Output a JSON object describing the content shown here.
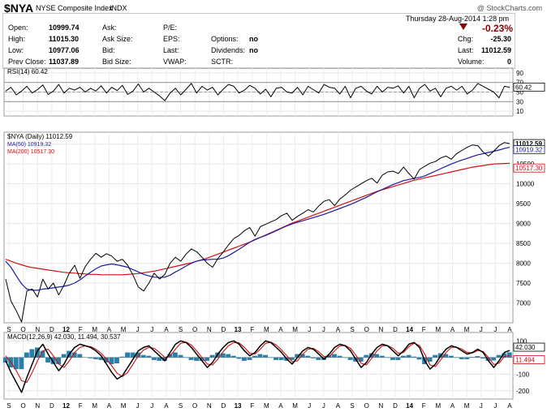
{
  "header": {
    "symbol": "$NYA",
    "name": "NYSE Composite Index",
    "exchange": "INDX",
    "watermark": "@ StockCharts.com"
  },
  "quote": {
    "date_line": "Thursday   28-Aug-2014   1:28 pm",
    "pct_change": "-0.23%",
    "rows": [
      {
        "l1": "Open:",
        "v1": "10999.74",
        "l2": "Ask:",
        "v2": "",
        "l3": "P/E:",
        "v3": "",
        "l4": "",
        "v4": ""
      },
      {
        "l1": "High:",
        "v1": "11015.30",
        "l2": "Ask Size:",
        "v2": "",
        "l3": "EPS:",
        "v3": "",
        "l4": "Options:",
        "v4": "no"
      },
      {
        "l1": "Low:",
        "v1": "10977.06",
        "l2": "Bid:",
        "v2": "",
        "l3": "Last:",
        "v3": "",
        "l4": "Dividends:",
        "v4": "no"
      },
      {
        "l1": "Prev Close:",
        "v1": "11037.89",
        "l2": "Bid Size:",
        "v2": "",
        "l3": "VWAP:",
        "v3": "",
        "l4": "SCTR:",
        "v4": ""
      }
    ],
    "right": [
      {
        "label": "Chg:",
        "value": "-25.30"
      },
      {
        "label": "Last:",
        "value": "11012.59"
      },
      {
        "label": "Volume:",
        "value": "0"
      }
    ]
  },
  "chart_data": [
    {
      "type": "line",
      "title": "RSI(14) 60.42",
      "ylim": [
        0,
        100
      ],
      "y_ticks": [
        10,
        30,
        50,
        70,
        90
      ],
      "reference_lines": [
        30,
        50,
        70
      ],
      "last_label": "60.42",
      "series": [
        {
          "name": "RSI(14)",
          "color": "#000000",
          "values": [
            52,
            60,
            44,
            52,
            62,
            48,
            55,
            65,
            45,
            52,
            66,
            48,
            58,
            54,
            60,
            50,
            58,
            52,
            63,
            48,
            60,
            53,
            64,
            45,
            52,
            67,
            50,
            58,
            50,
            42,
            32,
            48,
            58,
            44,
            56,
            68,
            48,
            62,
            54,
            60,
            44,
            56,
            66,
            62,
            48,
            54,
            64,
            58,
            46,
            56,
            40,
            58,
            60,
            50,
            48,
            60,
            44,
            62,
            55,
            48,
            66,
            60,
            58,
            46,
            62,
            38,
            58,
            62,
            52,
            46,
            62,
            50,
            60,
            58,
            63,
            48,
            62,
            38,
            58,
            66,
            52,
            58,
            40,
            58,
            62,
            54,
            62,
            46,
            54,
            68,
            62,
            56,
            50,
            38,
            62,
            60
          ]
        }
      ]
    },
    {
      "type": "line",
      "title": "$NYA (Daily) 11012.59",
      "ylim": [
        6500,
        11300
      ],
      "y_ticks": [
        7000,
        7500,
        8000,
        8500,
        9000,
        9500,
        10000,
        10500,
        11000
      ],
      "x_tick_labels": [
        "S",
        "O",
        "N",
        "D",
        "12",
        "F",
        "M",
        "A",
        "M",
        "J",
        "J",
        "A",
        "S",
        "O",
        "N",
        "D",
        "13",
        "F",
        "M",
        "A",
        "M",
        "J",
        "J",
        "A",
        "S",
        "O",
        "N",
        "D",
        "14",
        "F",
        "M",
        "A",
        "M",
        "J",
        "J",
        "A"
      ],
      "last_labels": {
        "price": "11012.59",
        "ma50": "10919.32",
        "ma200": "10517.30"
      },
      "series": [
        {
          "name": "$NYA (Daily) 11012.59",
          "color": "#000000",
          "values": [
            7600,
            7050,
            6800,
            6520,
            7300,
            7350,
            7150,
            7600,
            7350,
            7500,
            7200,
            7450,
            7750,
            7950,
            7620,
            7920,
            8100,
            8250,
            8150,
            8240,
            8180,
            8050,
            8100,
            7950,
            7700,
            7400,
            7300,
            7500,
            7750,
            7600,
            7720,
            8000,
            8150,
            8050,
            8230,
            8360,
            8290,
            8150,
            8000,
            7900,
            8120,
            8280,
            8460,
            8620,
            8700,
            8820,
            8900,
            8680,
            8920,
            8980,
            9040,
            9100,
            9200,
            9260,
            9080,
            9180,
            9260,
            9350,
            9290,
            9440,
            9560,
            9600,
            9450,
            9620,
            9720,
            9840,
            9920,
            10000,
            10080,
            10140,
            10020,
            10220,
            10300,
            10320,
            10260,
            10420,
            10260,
            10120,
            10360,
            10440,
            10520,
            10560,
            10650,
            10700,
            10620,
            10760,
            10840,
            10920,
            10980,
            10960,
            10800,
            10700,
            10820,
            10960,
            11037.89,
            11012.59
          ]
        },
        {
          "name": "MA(50) 10919.32",
          "color": "#1a1aa0",
          "values": [
            8050,
            7900,
            7680,
            7480,
            7350,
            7320,
            7320,
            7350,
            7360,
            7380,
            7400,
            7420,
            7450,
            7500,
            7580,
            7680,
            7770,
            7860,
            7930,
            7960,
            7980,
            7960,
            7930,
            7900,
            7840,
            7780,
            7720,
            7680,
            7650,
            7640,
            7650,
            7700,
            7780,
            7850,
            7930,
            8000,
            8050,
            8080,
            8090,
            8100,
            8100,
            8130,
            8190,
            8270,
            8350,
            8440,
            8530,
            8600,
            8650,
            8700,
            8760,
            8820,
            8880,
            8940,
            8990,
            9030,
            9070,
            9110,
            9150,
            9190,
            9230,
            9280,
            9330,
            9380,
            9430,
            9480,
            9540,
            9600,
            9660,
            9730,
            9800,
            9860,
            9920,
            9980,
            10030,
            10080,
            10110,
            10140,
            10160,
            10200,
            10260,
            10320,
            10380,
            10440,
            10500,
            10550,
            10600,
            10640,
            10690,
            10730,
            10760,
            10790,
            10820,
            10850,
            10890,
            10919.32
          ]
        },
        {
          "name": "MA(200) 10517.30",
          "color": "#d01010",
          "values": [
            8100,
            8050,
            8000,
            7960,
            7920,
            7890,
            7870,
            7850,
            7830,
            7810,
            7790,
            7770,
            7760,
            7750,
            7740,
            7730,
            7720,
            7720,
            7710,
            7710,
            7710,
            7710,
            7710,
            7720,
            7730,
            7740,
            7760,
            7780,
            7800,
            7830,
            7860,
            7890,
            7920,
            7950,
            7980,
            8010,
            8050,
            8090,
            8130,
            8180,
            8230,
            8280,
            8330,
            8380,
            8430,
            8480,
            8530,
            8590,
            8650,
            8710,
            8770,
            8830,
            8890,
            8950,
            9010,
            9060,
            9110,
            9160,
            9210,
            9260,
            9310,
            9360,
            9410,
            9460,
            9510,
            9560,
            9610,
            9660,
            9710,
            9760,
            9810,
            9850,
            9890,
            9930,
            9970,
            10010,
            10050,
            10090,
            10120,
            10150,
            10180,
            10210,
            10240,
            10270,
            10300,
            10330,
            10360,
            10390,
            10420,
            10440,
            10460,
            10480,
            10500,
            10505,
            10512,
            10517.3
          ]
        }
      ]
    },
    {
      "type": "line",
      "title": "MACD(12,26,9) 42.030, 11.494, 30.537",
      "ylim": [
        -250,
        150
      ],
      "y_ticks": [
        -200,
        -100,
        0,
        100
      ],
      "x_tick_labels": [
        "S",
        "O",
        "N",
        "D",
        "12",
        "F",
        "M",
        "A",
        "M",
        "J",
        "J",
        "A",
        "S",
        "O",
        "N",
        "D",
        "13",
        "F",
        "M",
        "A",
        "M",
        "J",
        "J",
        "A",
        "S",
        "O",
        "N",
        "D",
        "14",
        "F",
        "M",
        "A",
        "M",
        "J",
        "J",
        "A"
      ],
      "last_labels": {
        "macd": "42.030",
        "signal": "11.494",
        "histogram": "30.537"
      },
      "series": [
        {
          "name": "MACD(12,26,9)",
          "color": "#000000",
          "values": [
            -20,
            -90,
            -150,
            -210,
            -120,
            -40,
            40,
            80,
            20,
            -30,
            -80,
            -40,
            20,
            60,
            80,
            70,
            60,
            40,
            10,
            -40,
            -90,
            -130,
            -110,
            -60,
            -10,
            40,
            60,
            70,
            40,
            10,
            -20,
            30,
            80,
            100,
            90,
            60,
            20,
            -20,
            -60,
            -30,
            20,
            60,
            90,
            100,
            80,
            40,
            10,
            30,
            70,
            100,
            90,
            60,
            30,
            -10,
            -40,
            0,
            40,
            60,
            50,
            20,
            -10,
            20,
            60,
            80,
            70,
            40,
            -10,
            -60,
            -30,
            20,
            60,
            80,
            70,
            40,
            10,
            40,
            80,
            90,
            60,
            -20,
            -70,
            -40,
            10,
            50,
            70,
            60,
            40,
            20,
            30,
            50,
            30,
            -20,
            -60,
            -20,
            30,
            42.03
          ]
        },
        {
          "name": "Signal",
          "color": "#d01010",
          "values": [
            10,
            -30,
            -80,
            -140,
            -150,
            -90,
            -20,
            40,
            50,
            10,
            -40,
            -60,
            -20,
            30,
            60,
            70,
            65,
            50,
            25,
            -10,
            -50,
            -95,
            -115,
            -90,
            -40,
            10,
            45,
            60,
            55,
            30,
            0,
            10,
            50,
            85,
            92,
            75,
            40,
            0,
            -40,
            -45,
            -10,
            35,
            70,
            90,
            88,
            60,
            25,
            20,
            50,
            85,
            92,
            75,
            45,
            10,
            -25,
            -20,
            20,
            50,
            55,
            35,
            5,
            5,
            40,
            70,
            72,
            55,
            15,
            -35,
            -45,
            -5,
            40,
            70,
            72,
            55,
            25,
            30,
            65,
            85,
            72,
            20,
            -45,
            -55,
            -15,
            30,
            60,
            62,
            50,
            30,
            27,
            42,
            36,
            0,
            -42,
            -35,
            5,
            11.494
          ]
        },
        {
          "name": "Histogram",
          "color": "#2a7fa8",
          "type": "bar",
          "values": [
            -30,
            -60,
            -70,
            -70,
            30,
            50,
            60,
            40,
            -30,
            -40,
            -40,
            20,
            40,
            30,
            20,
            0,
            -5,
            -10,
            -15,
            -30,
            -40,
            -35,
            5,
            30,
            30,
            30,
            15,
            10,
            -15,
            -20,
            -20,
            20,
            30,
            15,
            -2,
            -15,
            -20,
            -20,
            -20,
            15,
            30,
            25,
            20,
            10,
            -8,
            -20,
            -15,
            10,
            20,
            15,
            -2,
            -15,
            -15,
            -20,
            -15,
            20,
            20,
            10,
            -5,
            -15,
            -15,
            15,
            20,
            10,
            -2,
            -15,
            -25,
            -25,
            15,
            25,
            20,
            10,
            -2,
            -15,
            -15,
            10,
            15,
            5,
            -12,
            -40,
            -25,
            15,
            25,
            20,
            10,
            -2,
            -10,
            -10,
            3,
            8,
            -6,
            -20,
            -18,
            15,
            25,
            30.537
          ]
        }
      ]
    }
  ]
}
